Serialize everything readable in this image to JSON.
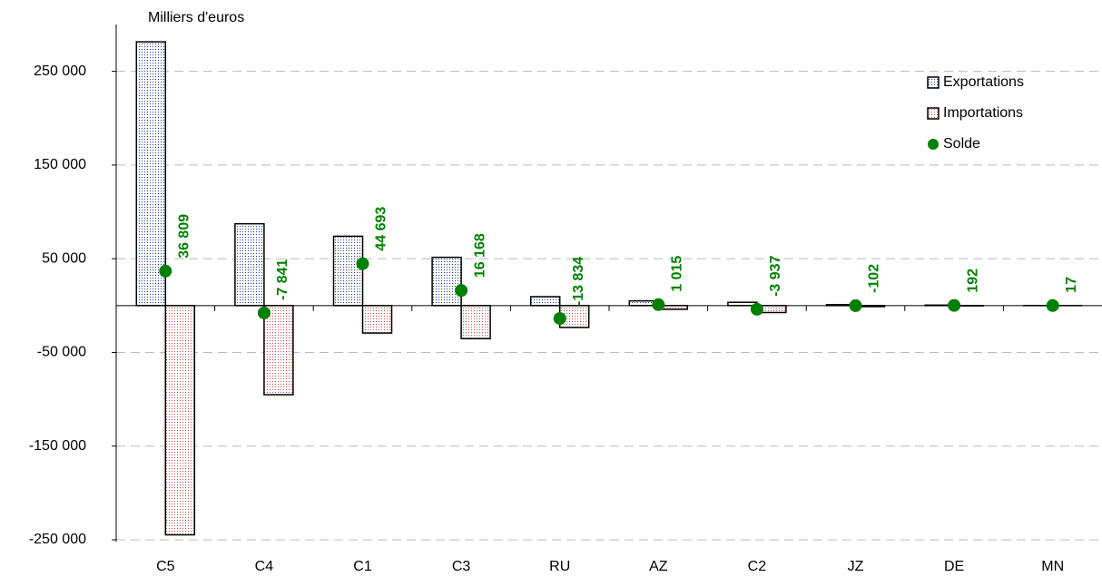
{
  "chart_data": {
    "type": "bar",
    "ylabel": "Milliers d'euros",
    "categories": [
      "C5",
      "C4",
      "C1",
      "C3",
      "RU",
      "AZ",
      "C2",
      "JZ",
      "DE",
      "MN"
    ],
    "series": [
      {
        "name": "Exportations",
        "type": "bar",
        "color": "#1f3f8f",
        "values": [
          281500,
          87300,
          74000,
          51500,
          9500,
          5000,
          3500,
          1000,
          500,
          20
        ]
      },
      {
        "name": "Importations",
        "type": "bar",
        "color": "#c0504d",
        "values": [
          -244691,
          -95141,
          -29307,
          -35332,
          -23334,
          -3985,
          -7437,
          -1102,
          -308,
          -3
        ]
      },
      {
        "name": "Solde",
        "type": "scatter",
        "color": "#008000",
        "values": [
          36809,
          -7841,
          44693,
          16168,
          -13834,
          1015,
          -3937,
          -102,
          192,
          17
        ],
        "value_labels": [
          "36 809",
          "-7 841",
          "44 693",
          "16 168",
          "-13 834",
          "1 015",
          "-3 937",
          "-102",
          "192",
          "17"
        ]
      }
    ],
    "ylim": [
      -250000,
      300000
    ],
    "yticks": [
      {
        "value": 250000,
        "label": "250 000"
      },
      {
        "value": 150000,
        "label": "150 000"
      },
      {
        "value": 50000,
        "label": "50 000"
      },
      {
        "value": -50000,
        "label": "-50 000"
      },
      {
        "value": -150000,
        "label": "-150 000"
      },
      {
        "value": -250000,
        "label": "-250 000"
      }
    ],
    "grid": true,
    "legend": "upper right"
  }
}
